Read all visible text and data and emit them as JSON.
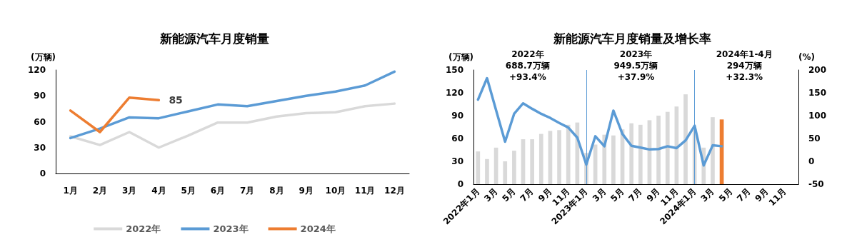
{
  "chart_data": [
    {
      "type": "line",
      "title": "新能源汽车月度销量",
      "ylabel": "(万辆)",
      "categories": [
        "1月",
        "2月",
        "3月",
        "4月",
        "5月",
        "6月",
        "7月",
        "8月",
        "9月",
        "10月",
        "11月",
        "12月"
      ],
      "series": [
        {
          "name": "2022年",
          "color": "#d9d9d9",
          "values": [
            43,
            33,
            48,
            30,
            44,
            59,
            59,
            66,
            70,
            71,
            78,
            81
          ]
        },
        {
          "name": "2023年",
          "color": "#5b9bd5",
          "values": [
            41,
            52,
            65,
            64,
            72,
            80,
            78,
            84,
            90,
            95,
            102,
            118
          ]
        },
        {
          "name": "2024年",
          "color": "#ed7d31",
          "values": [
            73,
            48,
            88,
            85,
            null,
            null,
            null,
            null,
            null,
            null,
            null,
            null
          ],
          "value_labels": [
            null,
            null,
            null,
            "85",
            null,
            null,
            null,
            null,
            null,
            null,
            null,
            null
          ]
        }
      ],
      "ylim": [
        0,
        120
      ],
      "yticks": [
        0,
        30,
        60,
        90,
        120
      ],
      "grid": false,
      "legend": "bottom",
      "marker": "none",
      "line_style": "solid"
    },
    {
      "type": "bar",
      "title": "新能源汽车月度销量及增长率",
      "ylabel": "(万辆)",
      "y2label": "(%)",
      "categories": [
        "2022年1月",
        null,
        "3月",
        null,
        "5月",
        null,
        "7月",
        null,
        "9月",
        null,
        "11月",
        null,
        "2023年1月",
        null,
        "3月",
        null,
        "5月",
        null,
        "7月",
        null,
        "9月",
        null,
        "11月",
        null,
        "2024年1月",
        null,
        "3月",
        null,
        "5月",
        null,
        "7月",
        null,
        "9月",
        null,
        "11月",
        null
      ],
      "series": [
        {
          "type": "bar",
          "values": [
            43,
            33,
            48,
            30,
            44,
            59,
            59,
            66,
            70,
            71,
            78,
            81,
            41,
            52,
            65,
            64,
            72,
            80,
            78,
            84,
            90,
            95,
            102,
            118,
            72,
            48,
            88,
            85,
            null,
            null,
            null,
            null,
            null,
            null,
            null,
            null
          ],
          "colors": [
            "#d9d9d9",
            "#d9d9d9",
            "#d9d9d9",
            "#d9d9d9",
            "#d9d9d9",
            "#d9d9d9",
            "#d9d9d9",
            "#d9d9d9",
            "#d9d9d9",
            "#d9d9d9",
            "#d9d9d9",
            "#d9d9d9",
            "#d9d9d9",
            "#d9d9d9",
            "#d9d9d9",
            "#d9d9d9",
            "#d9d9d9",
            "#d9d9d9",
            "#d9d9d9",
            "#d9d9d9",
            "#d9d9d9",
            "#d9d9d9",
            "#d9d9d9",
            "#d9d9d9",
            "#d9d9d9",
            "#d9d9d9",
            "#d9d9d9",
            "#ed7d31",
            "#d9d9d9",
            "#d9d9d9",
            "#d9d9d9",
            "#d9d9d9",
            "#d9d9d9",
            "#d9d9d9",
            "#d9d9d9",
            "#d9d9d9"
          ]
        },
        {
          "type": "line",
          "axis": "y2",
          "color": "#5b9bd5",
          "values": [
            135,
            182,
            112,
            43,
            104,
            127,
            115,
            104,
            95,
            84,
            74,
            52,
            -7,
            55,
            33,
            111,
            60,
            34,
            30,
            26,
            27,
            33,
            29,
            46,
            78,
            -9,
            35,
            33,
            null,
            null,
            null,
            null,
            null,
            null,
            null,
            null
          ]
        }
      ],
      "ylim": [
        0,
        150
      ],
      "yticks": [
        0,
        30,
        60,
        90,
        120,
        150
      ],
      "y2lim": [
        -50,
        200
      ],
      "y2ticks": [
        -50,
        0,
        50,
        100,
        150,
        200
      ],
      "ref_lines": [
        {
          "axis": "x",
          "value": "2023年1月",
          "color": "#5b9bd5"
        },
        {
          "axis": "x",
          "value": "2024年1月",
          "color": "#5b9bd5"
        }
      ],
      "annotations": [
        "2022年\n688.7万辆\n+93.4%",
        "2023年\n949.5万辆\n+37.9%",
        "2024年1-4月\n294万辆\n+32.3%"
      ],
      "grid": false,
      "legend": false,
      "marker": "none",
      "line_style": "solid"
    }
  ]
}
